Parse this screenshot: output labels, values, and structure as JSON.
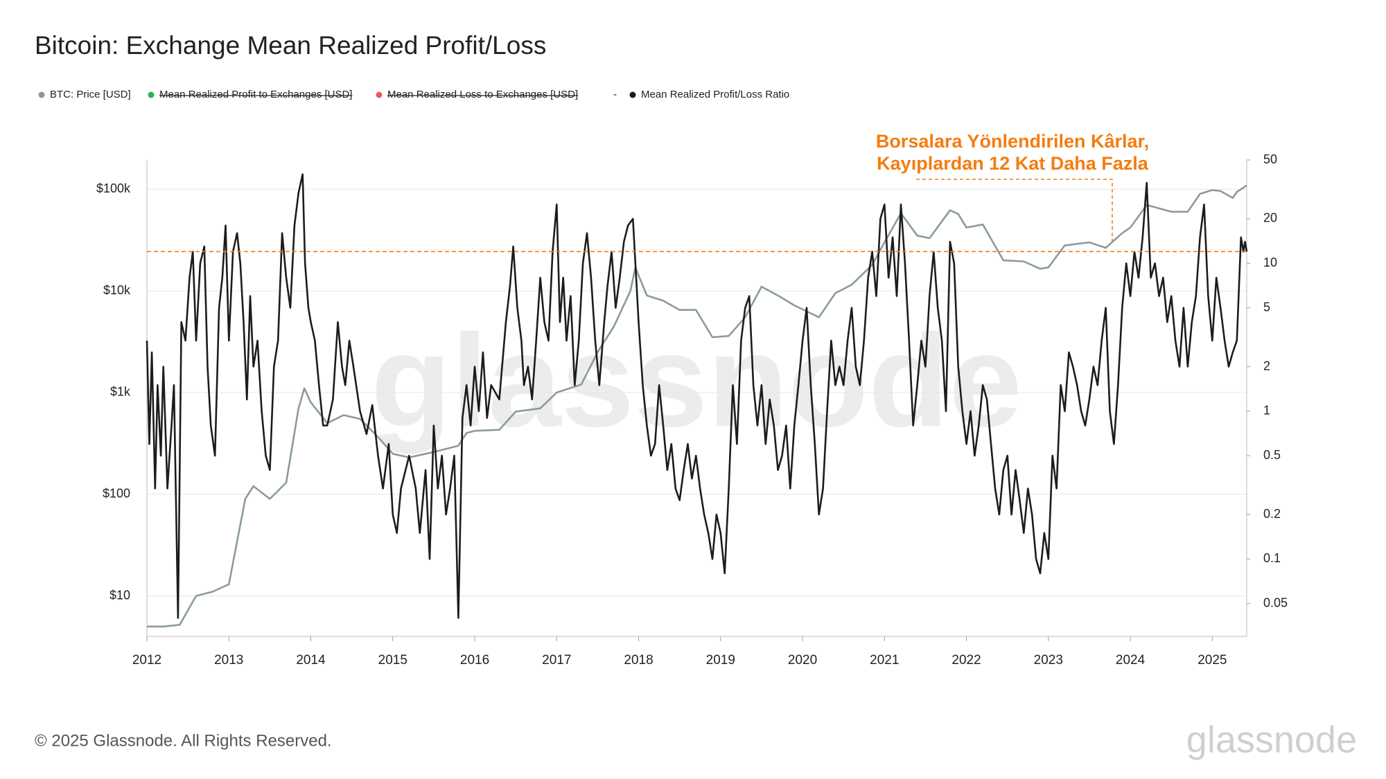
{
  "chart_data": {
    "type": "line",
    "title": "Bitcoin: Exchange Mean Realized Profit/Loss",
    "footer": "© 2025 Glassnode. All Rights Reserved.",
    "watermark": "glassnode",
    "log_scale": true,
    "grid": true,
    "legend": [
      {
        "name": "BTC: Price [USD]",
        "color": "#8a9aa0",
        "hidden": false
      },
      {
        "name": "Mean Realized Profit to Exchanges [USD]",
        "color": "#2fb34a",
        "hidden": true
      },
      {
        "name": "Mean Realized Loss to Exchanges [USD]",
        "color": "#ee5a5a",
        "hidden": true
      },
      {
        "name": "Mean Realized Profit/Loss Ratio",
        "color": "#1c1c1c",
        "hidden": false,
        "prefix": "-"
      }
    ],
    "annotation": {
      "text": [
        "Borsalara Yönlendirilen Kârlar,",
        "Kayıplardan 12 Kat Daha Fazla"
      ],
      "color": "#f47c10",
      "value": 12,
      "axis": "y2"
    },
    "xlim": [
      2012,
      2025.42
    ],
    "xticks": [
      2012,
      2013,
      2014,
      2015,
      2016,
      2017,
      2018,
      2019,
      2020,
      2021,
      2022,
      2023,
      2024,
      2025
    ],
    "ylim": [
      4,
      194000
    ],
    "yticks": [
      {
        "value": 10,
        "label": "$10"
      },
      {
        "value": 100,
        "label": "$100"
      },
      {
        "value": 1000,
        "label": "$1k"
      },
      {
        "value": 10000,
        "label": "$10k"
      },
      {
        "value": 100000,
        "label": "$100k"
      }
    ],
    "y2lim": [
      0.03,
      50
    ],
    "y2ticks": [
      0.05,
      0.1,
      0.2,
      0.5,
      1,
      2,
      5,
      10,
      20,
      50
    ],
    "series": [
      {
        "name": "BTC: Price [USD]",
        "color": "#8a9aa0",
        "axis": "y",
        "x": [
          2012.0,
          2012.2,
          2012.4,
          2012.6,
          2012.8,
          2013.0,
          2013.2,
          2013.3,
          2013.5,
          2013.7,
          2013.85,
          2013.92,
          2014.0,
          2014.2,
          2014.4,
          2014.6,
          2014.8,
          2015.0,
          2015.2,
          2015.5,
          2015.8,
          2015.9,
          2016.0,
          2016.3,
          2016.5,
          2016.8,
          2017.0,
          2017.3,
          2017.5,
          2017.7,
          2017.9,
          2017.96,
          2018.1,
          2018.3,
          2018.5,
          2018.7,
          2018.9,
          2019.1,
          2019.3,
          2019.5,
          2019.7,
          2019.9,
          2020.2,
          2020.4,
          2020.6,
          2020.85,
          2021.0,
          2021.2,
          2021.4,
          2021.55,
          2021.8,
          2021.9,
          2022.0,
          2022.2,
          2022.45,
          2022.7,
          2022.9,
          2023.0,
          2023.2,
          2023.5,
          2023.7,
          2023.9,
          2024.0,
          2024.2,
          2024.5,
          2024.7,
          2024.85,
          2025.0,
          2025.1,
          2025.25,
          2025.3,
          2025.42
        ],
        "values": [
          5,
          5,
          5.2,
          10,
          11,
          13,
          90,
          120,
          90,
          130,
          700,
          1100,
          800,
          500,
          600,
          550,
          380,
          250,
          230,
          260,
          300,
          400,
          420,
          430,
          650,
          700,
          1000,
          1200,
          2500,
          4500,
          10000,
          17000,
          9000,
          8000,
          6500,
          6500,
          3500,
          3600,
          5500,
          11000,
          9000,
          7200,
          5500,
          9500,
          11500,
          18000,
          30000,
          58000,
          35000,
          33000,
          62000,
          57000,
          42000,
          45000,
          20000,
          19500,
          16500,
          17000,
          28000,
          30000,
          26500,
          37000,
          42000,
          70000,
          60000,
          60000,
          90000,
          98000,
          96000,
          82000,
          94000,
          109000
        ]
      },
      {
        "name": "Mean Realized Profit/Loss Ratio",
        "color": "#1c1c1c",
        "axis": "y2",
        "x": [
          2012.0,
          2012.03,
          2012.06,
          2012.1,
          2012.13,
          2012.17,
          2012.2,
          2012.25,
          2012.3,
          2012.33,
          2012.38,
          2012.42,
          2012.47,
          2012.52,
          2012.56,
          2012.6,
          2012.65,
          2012.7,
          2012.74,
          2012.78,
          2012.83,
          2012.88,
          2012.92,
          2012.96,
          2013.0,
          2013.05,
          2013.1,
          2013.14,
          2013.18,
          2013.22,
          2013.26,
          2013.3,
          2013.35,
          2013.4,
          2013.45,
          2013.5,
          2013.55,
          2013.6,
          2013.65,
          2013.7,
          2013.75,
          2013.8,
          2013.85,
          2013.9,
          2013.93,
          2013.97,
          2014.0,
          2014.05,
          2014.1,
          2014.15,
          2014.2,
          2014.27,
          2014.33,
          2014.38,
          2014.42,
          2014.47,
          2014.52,
          2014.6,
          2014.68,
          2014.75,
          2014.82,
          2014.88,
          2014.95,
          2015.0,
          2015.05,
          2015.1,
          2015.2,
          2015.28,
          2015.33,
          2015.4,
          2015.45,
          2015.5,
          2015.55,
          2015.6,
          2015.65,
          2015.7,
          2015.75,
          2015.8,
          2015.85,
          2015.9,
          2015.95,
          2016.0,
          2016.05,
          2016.1,
          2016.15,
          2016.2,
          2016.3,
          2016.38,
          2016.43,
          2016.47,
          2016.52,
          2016.57,
          2016.6,
          2016.65,
          2016.7,
          2016.75,
          2016.8,
          2016.85,
          2016.9,
          2016.95,
          2017.0,
          2017.04,
          2017.08,
          2017.12,
          2017.17,
          2017.22,
          2017.27,
          2017.32,
          2017.37,
          2017.42,
          2017.47,
          2017.52,
          2017.58,
          2017.62,
          2017.67,
          2017.72,
          2017.77,
          2017.82,
          2017.87,
          2017.93,
          2017.97,
          2018.0,
          2018.05,
          2018.1,
          2018.15,
          2018.2,
          2018.25,
          2018.3,
          2018.35,
          2018.4,
          2018.45,
          2018.5,
          2018.55,
          2018.6,
          2018.65,
          2018.7,
          2018.75,
          2018.8,
          2018.85,
          2018.9,
          2018.95,
          2019.0,
          2019.05,
          2019.1,
          2019.15,
          2019.2,
          2019.25,
          2019.3,
          2019.35,
          2019.4,
          2019.45,
          2019.5,
          2019.55,
          2019.6,
          2019.65,
          2019.7,
          2019.75,
          2019.8,
          2019.85,
          2019.9,
          2019.95,
          2020.0,
          2020.05,
          2020.1,
          2020.15,
          2020.2,
          2020.25,
          2020.3,
          2020.35,
          2020.4,
          2020.45,
          2020.5,
          2020.55,
          2020.6,
          2020.65,
          2020.7,
          2020.75,
          2020.8,
          2020.85,
          2020.9,
          2020.95,
          2021.0,
          2021.05,
          2021.1,
          2021.15,
          2021.2,
          2021.25,
          2021.3,
          2021.35,
          2021.4,
          2021.45,
          2021.5,
          2021.55,
          2021.6,
          2021.65,
          2021.7,
          2021.75,
          2021.8,
          2021.85,
          2021.9,
          2021.95,
          2022.0,
          2022.05,
          2022.1,
          2022.15,
          2022.2,
          2022.25,
          2022.3,
          2022.35,
          2022.4,
          2022.45,
          2022.5,
          2022.55,
          2022.6,
          2022.65,
          2022.7,
          2022.75,
          2022.8,
          2022.85,
          2022.9,
          2022.95,
          2023.0,
          2023.05,
          2023.1,
          2023.15,
          2023.2,
          2023.25,
          2023.3,
          2023.35,
          2023.4,
          2023.45,
          2023.5,
          2023.55,
          2023.6,
          2023.65,
          2023.7,
          2023.75,
          2023.8,
          2023.85,
          2023.9,
          2023.95,
          2024.0,
          2024.05,
          2024.1,
          2024.15,
          2024.2,
          2024.25,
          2024.3,
          2024.35,
          2024.4,
          2024.45,
          2024.5,
          2024.55,
          2024.6,
          2024.65,
          2024.7,
          2024.75,
          2024.8,
          2024.85,
          2024.9,
          2024.95,
          2025.0,
          2025.05,
          2025.1,
          2025.15,
          2025.2,
          2025.25,
          2025.3,
          2025.35,
          2025.38,
          2025.4,
          2025.42
        ],
        "values": [
          3,
          0.6,
          2.5,
          0.3,
          1.5,
          0.5,
          2,
          0.3,
          0.8,
          1.5,
          0.04,
          4,
          3,
          8,
          12,
          3,
          10,
          13,
          2,
          0.8,
          0.5,
          5,
          8,
          18,
          3,
          12,
          16,
          10,
          4,
          1.2,
          6,
          2,
          3,
          1,
          0.5,
          0.4,
          2,
          3,
          16,
          8,
          5,
          18,
          30,
          40,
          10,
          5,
          4,
          3,
          1.5,
          0.8,
          0.8,
          1.2,
          4,
          2,
          1.5,
          3,
          2,
          1,
          0.7,
          1.1,
          0.5,
          0.3,
          0.6,
          0.2,
          0.15,
          0.3,
          0.5,
          0.3,
          0.15,
          0.4,
          0.1,
          0.8,
          0.3,
          0.5,
          0.2,
          0.3,
          0.5,
          0.04,
          0.9,
          1.5,
          0.8,
          2,
          1,
          2.5,
          0.9,
          1.5,
          1.2,
          4,
          7,
          13,
          5,
          3,
          1.5,
          2,
          1.2,
          3,
          8,
          4,
          3,
          12,
          25,
          4,
          8,
          3,
          6,
          1.5,
          3,
          10,
          16,
          8,
          3,
          1.5,
          4,
          7,
          12,
          5,
          8,
          14,
          18,
          20,
          8,
          4,
          1.5,
          0.8,
          0.5,
          0.6,
          1.5,
          0.8,
          0.4,
          0.6,
          0.3,
          0.25,
          0.4,
          0.6,
          0.35,
          0.5,
          0.3,
          0.2,
          0.15,
          0.1,
          0.2,
          0.15,
          0.08,
          0.3,
          1.5,
          0.6,
          3,
          5,
          6,
          1.5,
          0.8,
          1.5,
          0.6,
          1.2,
          0.8,
          0.4,
          0.5,
          0.8,
          0.3,
          0.8,
          1.5,
          3,
          5,
          1.5,
          0.6,
          0.2,
          0.3,
          1,
          3,
          1.5,
          2,
          1.5,
          3,
          5,
          2,
          1.5,
          3,
          8,
          12,
          6,
          20,
          25,
          8,
          15,
          6,
          25,
          10,
          3,
          0.8,
          1.5,
          3,
          2,
          6,
          12,
          5,
          3,
          1,
          14,
          10,
          2,
          1,
          0.6,
          1,
          0.5,
          0.8,
          1.5,
          1.2,
          0.6,
          0.3,
          0.2,
          0.4,
          0.5,
          0.2,
          0.4,
          0.25,
          0.15,
          0.3,
          0.2,
          0.1,
          0.08,
          0.15,
          0.1,
          0.5,
          0.3,
          1.5,
          1,
          2.5,
          2,
          1.5,
          1,
          0.8,
          1.2,
          2,
          1.5,
          3,
          5,
          1,
          0.6,
          1.5,
          5,
          10,
          6,
          12,
          8,
          15,
          35,
          8,
          10,
          6,
          8,
          4,
          6,
          3,
          2,
          5,
          2,
          4,
          6,
          15,
          25,
          6,
          3,
          8,
          5,
          3,
          2,
          2.5,
          3,
          15,
          12,
          14,
          12
        ]
      }
    ]
  }
}
